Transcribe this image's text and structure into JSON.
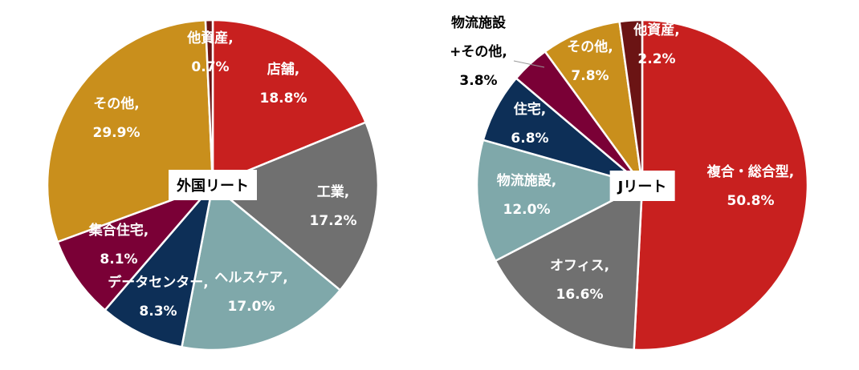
{
  "chart_data": [
    {
      "type": "pie",
      "center_label": "外国リート",
      "categories": [
        "店舗,",
        "工業,",
        "ヘルスケア,",
        "データセンター,",
        "集合住宅,",
        "その他,",
        "他資産,"
      ],
      "values": [
        18.8,
        17.2,
        17.0,
        8.3,
        8.1,
        29.9,
        0.7
      ],
      "value_labels": [
        "18.8%",
        "17.2%",
        "17.0%",
        "8.3%",
        "8.1%",
        "29.9%",
        "0.7%"
      ],
      "colors": [
        "#c8201f",
        "#707070",
        "#7fa8aa",
        "#0d2f57",
        "#7a0036",
        "#c98f1c",
        "#6b1414"
      ]
    },
    {
      "type": "pie",
      "center_label": "Jリート",
      "categories": [
        "複合・総合型,",
        "オフィス,",
        "物流施設,",
        "住宅,",
        "物流施設\n+その他,",
        "その他,",
        "他資産,"
      ],
      "values": [
        50.8,
        16.6,
        12.0,
        6.8,
        3.8,
        7.8,
        2.2
      ],
      "value_labels": [
        "50.8%",
        "16.6%",
        "12.0%",
        "6.8%",
        "3.8%",
        "7.8%",
        "2.2%"
      ],
      "colors": [
        "#c8201f",
        "#707070",
        "#7fa8aa",
        "#0d2f57",
        "#7a0036",
        "#c98f1c",
        "#6b1414"
      ]
    }
  ]
}
